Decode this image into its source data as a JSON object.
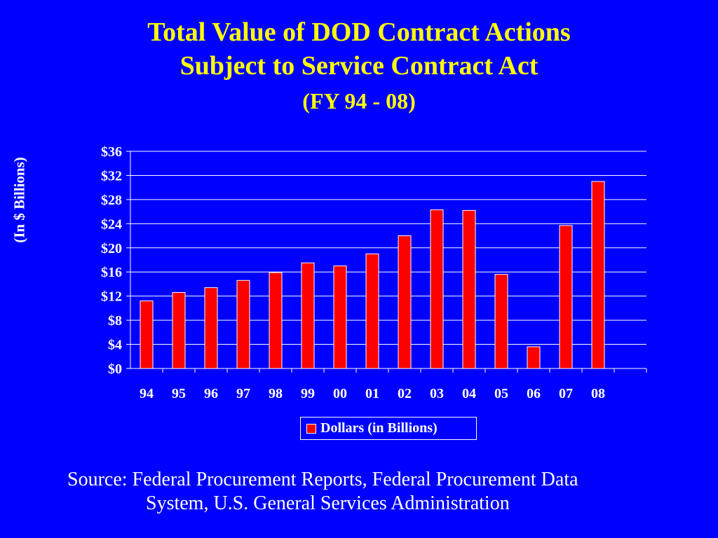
{
  "slide": {
    "title": "Total Value of DOD Contract Actions",
    "title_line2": "Subject to Service Contract Act",
    "subtitle": "(FY 94 - 08)",
    "source_line1": "Source: Federal Procurement Reports, Federal Procurement Data",
    "source_line2": "System, U.S. General Services Administration"
  },
  "colors": {
    "background": "#0000FF",
    "title": "#FFFF00",
    "bar": "#FF0000",
    "text": "#FFFFFF"
  },
  "chart_data": {
    "type": "bar",
    "title": "Total Value of DOD Contract Actions Subject to Service Contract Act",
    "subtitle": "(FY 94 - 08)",
    "xlabel": "",
    "ylabel": "(In $ Billions)",
    "categories": [
      "94",
      "95",
      "96",
      "97",
      "98",
      "99",
      "00",
      "01",
      "02",
      "03",
      "04",
      "05",
      "06",
      "07",
      "08"
    ],
    "series": [
      {
        "name": "Dollars (in Billions)",
        "values": [
          11.2,
          12.6,
          13.4,
          14.6,
          15.9,
          17.5,
          17.0,
          19.0,
          22.0,
          26.3,
          26.2,
          15.6,
          3.6,
          23.7,
          31.0
        ]
      }
    ],
    "ylim": [
      0,
      36
    ],
    "yticks": [
      0,
      4,
      8,
      12,
      16,
      20,
      24,
      28,
      32,
      36
    ],
    "ytick_labels": [
      "$0",
      "$4",
      "$8",
      "$12",
      "$16",
      "$20",
      "$24",
      "$28",
      "$32",
      "$36"
    ],
    "grid": true,
    "legend": "bottom"
  }
}
